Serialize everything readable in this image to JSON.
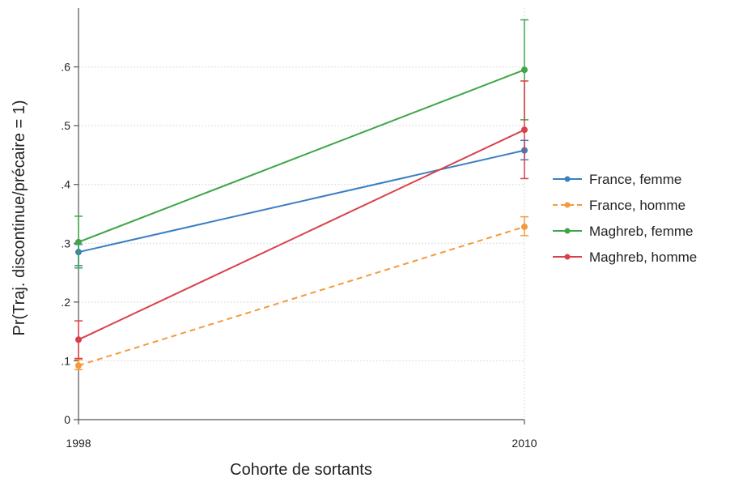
{
  "chart_data": {
    "type": "line",
    "title": "",
    "xlabel": "Cohorte de sortants",
    "ylabel": "Pr(Traj. discontinue/précaire = 1)",
    "x": [
      1998,
      2010
    ],
    "x_tick_labels": [
      "1998",
      "2010"
    ],
    "ylim": [
      0,
      0.7
    ],
    "y_ticks": [
      0,
      0.1,
      0.2,
      0.3,
      0.4,
      0.5,
      0.6
    ],
    "y_tick_labels": [
      "0",
      ".1",
      ".2",
      ".3",
      ".4",
      ".5",
      ".6"
    ],
    "grid": true,
    "legend_position": "right",
    "series": [
      {
        "name": "France, femme",
        "color": "#3a7fc1",
        "dash": "solid",
        "values": [
          0.285,
          0.458
        ],
        "ci_low": [
          0.262,
          0.442
        ],
        "ci_high": [
          0.298,
          0.475
        ]
      },
      {
        "name": "France, homme",
        "color": "#f39a3c",
        "dash": "dashed",
        "values": [
          0.092,
          0.328
        ],
        "ci_low": [
          0.085,
          0.313
        ],
        "ci_high": [
          0.102,
          0.345
        ]
      },
      {
        "name": "Maghreb, femme",
        "color": "#3fa548",
        "dash": "solid",
        "values": [
          0.302,
          0.595
        ],
        "ci_low": [
          0.258,
          0.51
        ],
        "ci_high": [
          0.346,
          0.68
        ]
      },
      {
        "name": "Maghreb, homme",
        "color": "#d9414a",
        "dash": "solid",
        "values": [
          0.136,
          0.493
        ],
        "ci_low": [
          0.104,
          0.41
        ],
        "ci_high": [
          0.168,
          0.576
        ]
      }
    ]
  }
}
